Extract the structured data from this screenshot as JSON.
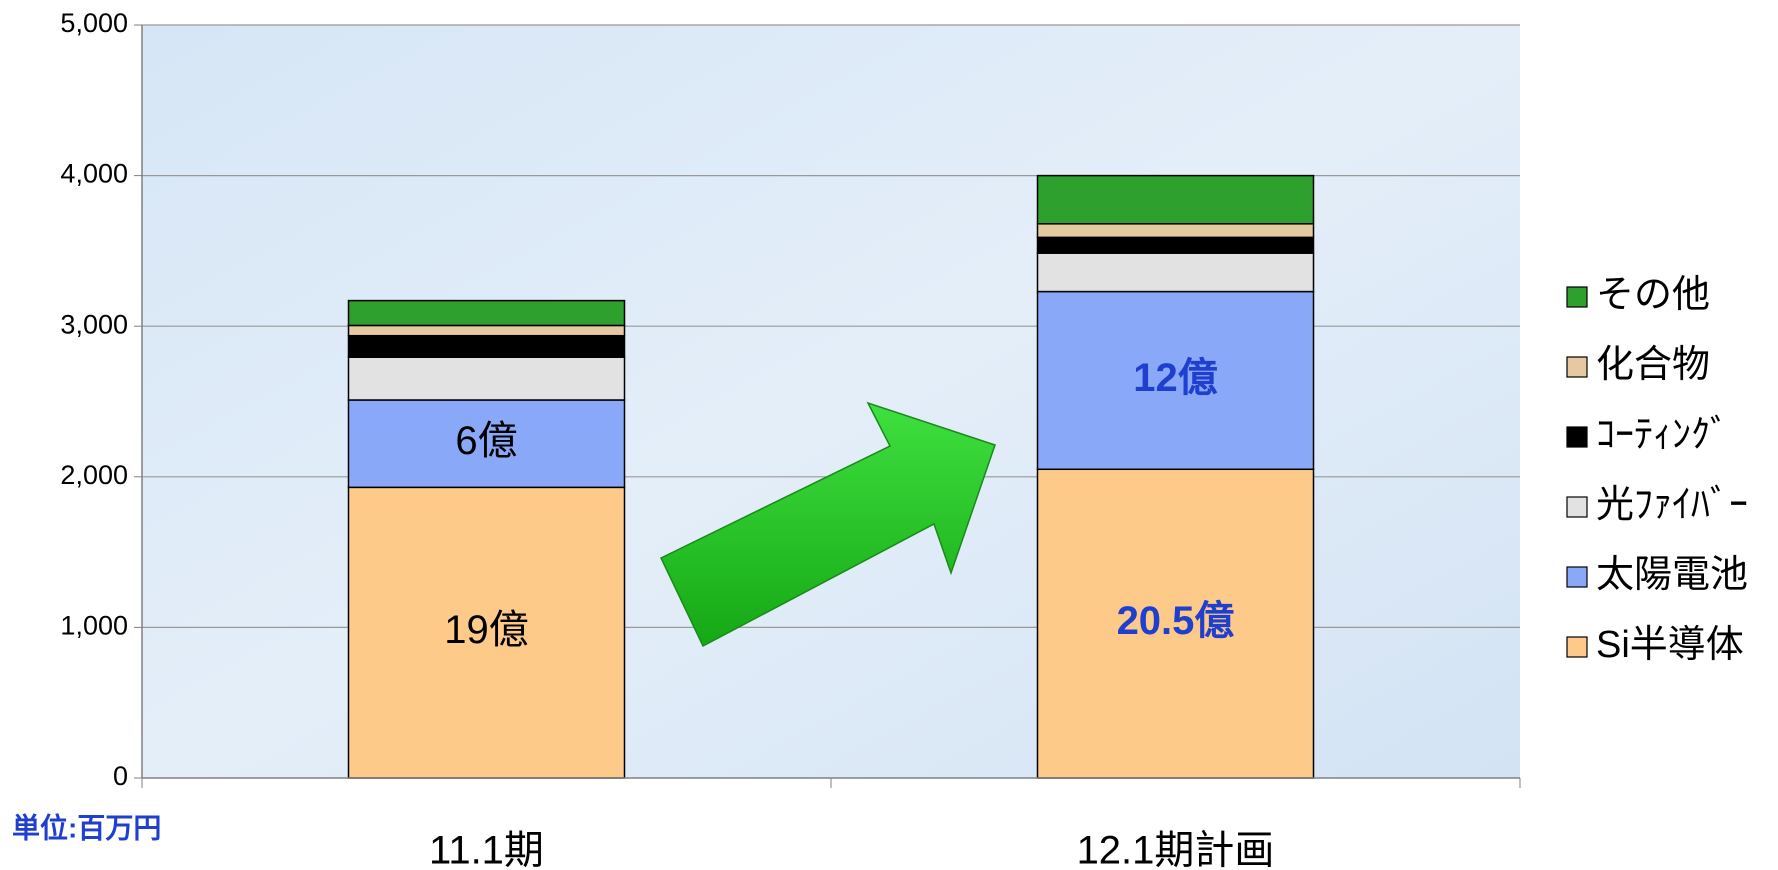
{
  "chart_data": {
    "type": "stacked-bar",
    "categories": [
      "11.1期",
      "12.1期計画"
    ],
    "series": [
      {
        "name": "Si半導体",
        "color": "#fdca8a",
        "values": [
          1930,
          2050
        ],
        "value_labels": [
          "19億",
          "20.5億"
        ]
      },
      {
        "name": "太陽電池",
        "color": "#8aa8f8",
        "values": [
          580,
          1180
        ],
        "value_labels": [
          "6億",
          "12億"
        ]
      },
      {
        "name": "光ﾌｧｲﾊﾞｰ",
        "color": "#e2e2e2",
        "values": [
          284,
          255
        ]
      },
      {
        "name": "ｺｰﾃｨﾝｸﾞ",
        "color": "#000000",
        "values": [
          143,
          105
        ]
      },
      {
        "name": "化合物",
        "color": "#e6c9a0",
        "values": [
          68,
          90
        ]
      },
      {
        "name": "その他",
        "color": "#2ea02e",
        "values": [
          165,
          320
        ]
      }
    ],
    "value_label_colors": [
      "#000000",
      "#1f3fcf"
    ],
    "unit_label": "単位:百万円",
    "ylim": [
      0,
      5000
    ],
    "yticks": [
      0,
      {
        "value": 1000,
        "label": "1,000"
      },
      {
        "value": 2000,
        "label": "2,000"
      },
      {
        "value": 3000,
        "label": "3,000"
      },
      {
        "value": 4000,
        "label": "4,000"
      },
      {
        "value": 5000,
        "label": "5,000"
      }
    ],
    "grid": true,
    "legend": "right"
  }
}
